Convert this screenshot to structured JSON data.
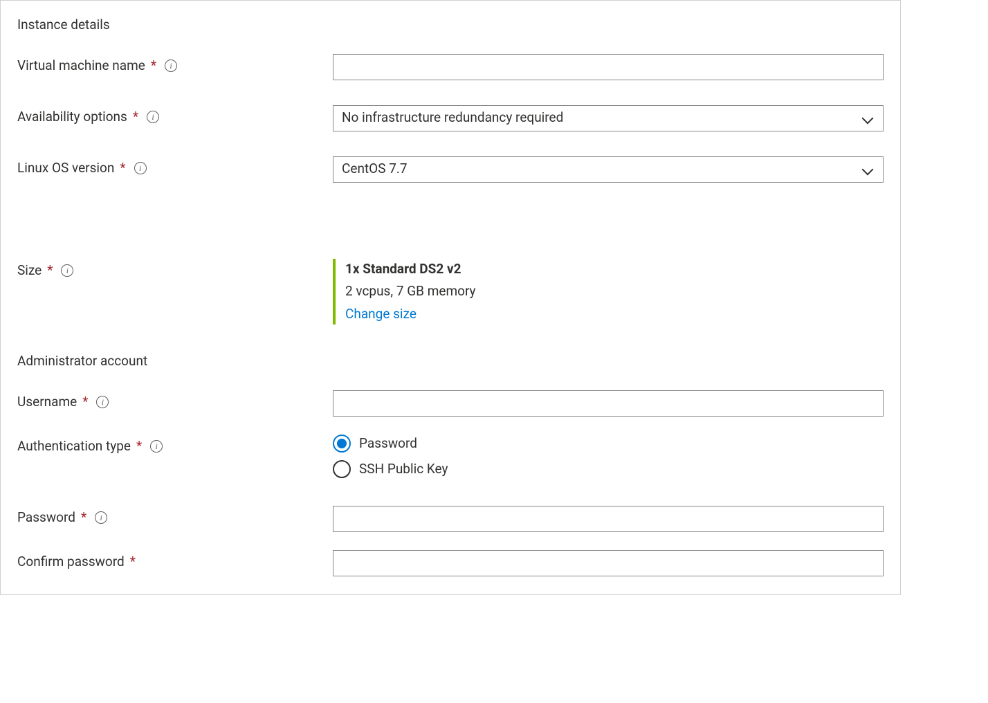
{
  "colors": {
    "text": "#323130",
    "border": "#8a8886",
    "panel_border": "#d1d1d1",
    "required": "#a4262c",
    "accent_green": "#7fba00",
    "link": "#0078d4",
    "radio_selected": "#0078d4"
  },
  "section_instance": {
    "heading": "Instance details"
  },
  "vm_name": {
    "label": "Virtual machine name",
    "required": true,
    "value": ""
  },
  "availability": {
    "label": "Availability options",
    "required": true,
    "selected": "No infrastructure redundancy required"
  },
  "os_version": {
    "label": "Linux OS version",
    "required": true,
    "selected": "CentOS 7.7"
  },
  "size": {
    "label": "Size",
    "required": true,
    "title": "1x Standard DS2 v2",
    "subtitle": "2 vcpus, 7 GB memory",
    "change_link": "Change size"
  },
  "section_admin": {
    "heading": "Administrator account"
  },
  "username": {
    "label": "Username",
    "required": true,
    "value": ""
  },
  "auth_type": {
    "label": "Authentication type",
    "required": true,
    "options": [
      {
        "label": "Password",
        "selected": true
      },
      {
        "label": "SSH Public Key",
        "selected": false
      }
    ]
  },
  "password": {
    "label": "Password",
    "required": true,
    "value": ""
  },
  "confirm_password": {
    "label": "Confirm password",
    "required": true,
    "value": ""
  }
}
